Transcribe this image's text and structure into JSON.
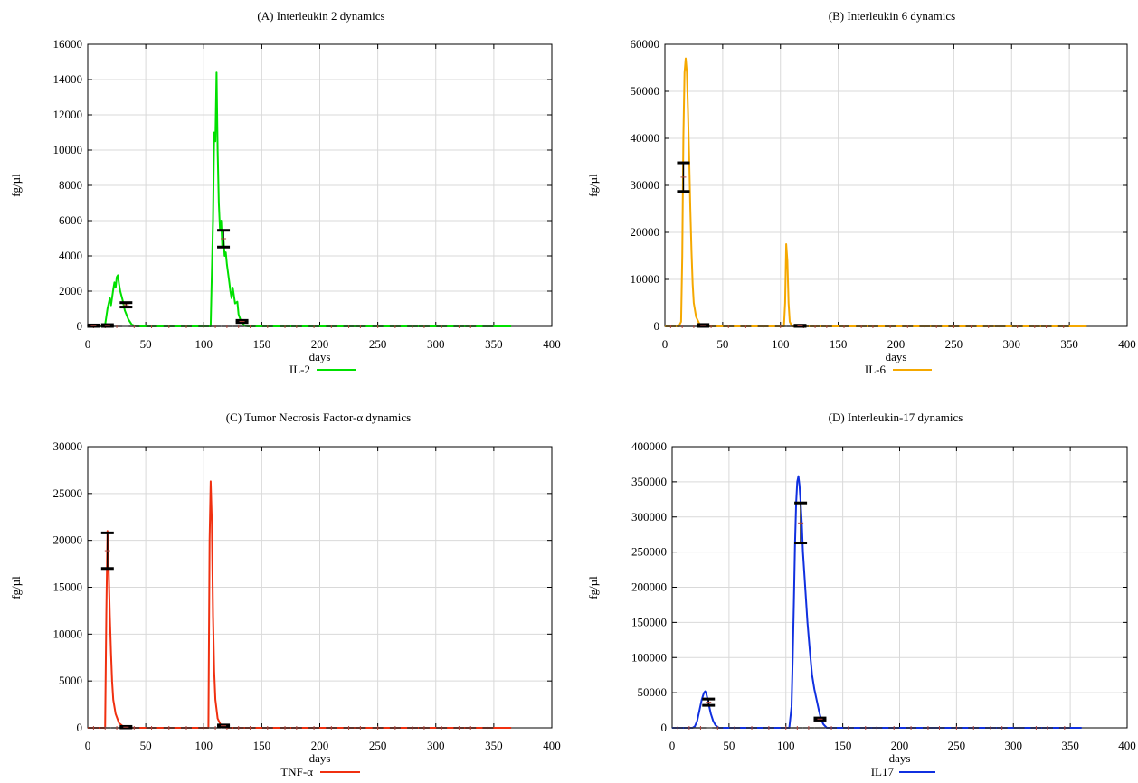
{
  "chart_data": [
    {
      "type": "line",
      "title": "(A) Interleukin 2 dynamics",
      "xlabel": "days",
      "ylabel": "fg/µl",
      "xlim": [
        0,
        400
      ],
      "ylim": [
        0,
        16000
      ],
      "xticks": [
        0,
        50,
        100,
        150,
        200,
        250,
        300,
        350,
        400
      ],
      "yticks": [
        0,
        2000,
        4000,
        6000,
        8000,
        10000,
        12000,
        14000,
        16000
      ],
      "grid": true,
      "legend_position": "bottom-center",
      "series": [
        {
          "name": "IL-2",
          "color": "#00e000",
          "points": [
            [
              0,
              0
            ],
            [
              12,
              0
            ],
            [
              15,
              100
            ],
            [
              17,
              1000
            ],
            [
              19,
              1600
            ],
            [
              20,
              1200
            ],
            [
              22,
              2100
            ],
            [
              23,
              2500
            ],
            [
              24,
              2200
            ],
            [
              25,
              2800
            ],
            [
              26,
              2900
            ],
            [
              27,
              2400
            ],
            [
              28,
              2000
            ],
            [
              30,
              1500
            ],
            [
              32,
              900
            ],
            [
              35,
              400
            ],
            [
              38,
              100
            ],
            [
              42,
              0
            ],
            [
              106,
              0
            ],
            [
              108,
              6000
            ],
            [
              109,
              11000
            ],
            [
              110,
              10500
            ],
            [
              111,
              14400
            ],
            [
              112,
              10000
            ],
            [
              113,
              7000
            ],
            [
              114,
              5500
            ],
            [
              115,
              6000
            ],
            [
              116,
              4500
            ],
            [
              117,
              5000
            ],
            [
              118,
              4000
            ],
            [
              119,
              4200
            ],
            [
              120,
              3500
            ],
            [
              122,
              2500
            ],
            [
              123,
              2000
            ],
            [
              124,
              1600
            ],
            [
              125,
              2200
            ],
            [
              127,
              1300
            ],
            [
              129,
              1400
            ],
            [
              130,
              700
            ],
            [
              132,
              300
            ],
            [
              135,
              50
            ],
            [
              138,
              0
            ],
            [
              365,
              0
            ]
          ]
        }
      ],
      "error_bars": [
        {
          "x": 5,
          "low": 0,
          "high": 80
        },
        {
          "x": 17,
          "low": 0,
          "high": 100
        },
        {
          "x": 33,
          "low": 1100,
          "high": 1350
        },
        {
          "x": 117,
          "low": 4500,
          "high": 5450
        },
        {
          "x": 133,
          "low": 220,
          "high": 340
        }
      ],
      "marker_x": [
        5,
        15,
        25,
        40,
        55,
        70,
        85,
        100,
        110,
        120,
        130,
        140,
        155,
        170,
        180,
        195,
        210,
        225,
        235,
        250,
        265,
        280,
        290,
        305,
        320,
        330,
        345
      ]
    },
    {
      "type": "line",
      "title": "(B) Interleukin 6 dynamics",
      "xlabel": "days",
      "ylabel": "fg/µl",
      "xlim": [
        0,
        400
      ],
      "ylim": [
        0,
        60000
      ],
      "xticks": [
        0,
        50,
        100,
        150,
        200,
        250,
        300,
        350,
        400
      ],
      "yticks": [
        0,
        10000,
        20000,
        30000,
        40000,
        50000,
        60000
      ],
      "grid": true,
      "legend_position": "bottom-center",
      "series": [
        {
          "name": "IL-6",
          "color": "#f5a800",
          "points": [
            [
              0,
              0
            ],
            [
              12,
              0
            ],
            [
              14,
              1000
            ],
            [
              15,
              15000
            ],
            [
              16,
              40000
            ],
            [
              17,
              54000
            ],
            [
              18,
              57000
            ],
            [
              19,
              54000
            ],
            [
              20,
              46000
            ],
            [
              21,
              36000
            ],
            [
              22,
              25000
            ],
            [
              23,
              16000
            ],
            [
              24,
              9000
            ],
            [
              25,
              5000
            ],
            [
              27,
              2000
            ],
            [
              30,
              500
            ],
            [
              35,
              0
            ],
            [
              103,
              0
            ],
            [
              104,
              5000
            ],
            [
              105,
              17500
            ],
            [
              106,
              14000
            ],
            [
              107,
              5000
            ],
            [
              108,
              1000
            ],
            [
              110,
              0
            ],
            [
              365,
              0
            ]
          ]
        }
      ],
      "error_bars": [
        {
          "x": 16,
          "low": 28700,
          "high": 34800
        },
        {
          "x": 33,
          "low": 0,
          "high": 400
        },
        {
          "x": 117,
          "low": 0,
          "high": 250
        }
      ],
      "marker_x": [
        5,
        15,
        25,
        40,
        55,
        70,
        85,
        100,
        110,
        120,
        130,
        140,
        155,
        170,
        180,
        195,
        210,
        225,
        235,
        250,
        265,
        280,
        290,
        305,
        320,
        330,
        345
      ]
    },
    {
      "type": "line",
      "title": "(C) Tumor Necrosis Factor-α dynamics",
      "xlabel": "days",
      "ylabel": "fg/µl",
      "xlim": [
        0,
        400
      ],
      "ylim": [
        0,
        30000
      ],
      "xticks": [
        0,
        50,
        100,
        150,
        200,
        250,
        300,
        350,
        400
      ],
      "yticks": [
        0,
        5000,
        10000,
        15000,
        20000,
        25000,
        30000
      ],
      "grid": true,
      "legend_position": "bottom-center",
      "series": [
        {
          "name": "TNF-α",
          "color": "#f03010",
          "points": [
            [
              0,
              0
            ],
            [
              15,
              0
            ],
            [
              16,
              12000
            ],
            [
              17,
              21000
            ],
            [
              18,
              17000
            ],
            [
              19,
              12000
            ],
            [
              20,
              8000
            ],
            [
              21,
              5000
            ],
            [
              22,
              3000
            ],
            [
              24,
              1500
            ],
            [
              27,
              500
            ],
            [
              32,
              0
            ],
            [
              104,
              0
            ],
            [
              105,
              20000
            ],
            [
              106,
              26300
            ],
            [
              107,
              22000
            ],
            [
              108,
              12000
            ],
            [
              109,
              6000
            ],
            [
              110,
              3000
            ],
            [
              112,
              1000
            ],
            [
              115,
              200
            ],
            [
              120,
              0
            ],
            [
              365,
              0
            ]
          ]
        }
      ],
      "error_bars": [
        {
          "x": 17,
          "low": 17000,
          "high": 20800
        },
        {
          "x": 33,
          "low": 0,
          "high": 150
        },
        {
          "x": 117,
          "low": 150,
          "high": 300
        }
      ],
      "marker_x": [
        5,
        15,
        25,
        40,
        55,
        70,
        85,
        100,
        110,
        120,
        130,
        140,
        155,
        170,
        180,
        195,
        210,
        225,
        235,
        250,
        265,
        280,
        290,
        305,
        320,
        330,
        345
      ]
    },
    {
      "type": "line",
      "title": "(D) Interleukin-17 dynamics",
      "xlabel": "days",
      "ylabel": "fg/µl",
      "xlim": [
        0,
        400
      ],
      "ylim": [
        0,
        400000
      ],
      "xticks": [
        0,
        50,
        100,
        150,
        200,
        250,
        300,
        350,
        400
      ],
      "yticks": [
        0,
        50000,
        100000,
        150000,
        200000,
        250000,
        300000,
        350000,
        400000
      ],
      "grid": true,
      "legend_position": "bottom-center",
      "series": [
        {
          "name": "IL17",
          "color": "#1030e0",
          "points": [
            [
              0,
              0
            ],
            [
              18,
              0
            ],
            [
              20,
              2000
            ],
            [
              22,
              10000
            ],
            [
              24,
              25000
            ],
            [
              26,
              40000
            ],
            [
              28,
              50000
            ],
            [
              29,
              52000
            ],
            [
              30,
              49000
            ],
            [
              32,
              35000
            ],
            [
              34,
              20000
            ],
            [
              36,
              10000
            ],
            [
              38,
              4000
            ],
            [
              41,
              0
            ],
            [
              103,
              0
            ],
            [
              105,
              30000
            ],
            [
              106,
              100000
            ],
            [
              107,
              180000
            ],
            [
              108,
              260000
            ],
            [
              109,
              320000
            ],
            [
              110,
              350000
            ],
            [
              111,
              358000
            ],
            [
              112,
              345000
            ],
            [
              113,
              320000
            ],
            [
              114,
              290000
            ],
            [
              115,
              250000
            ],
            [
              117,
              200000
            ],
            [
              119,
              150000
            ],
            [
              121,
              110000
            ],
            [
              123,
              75000
            ],
            [
              125,
              55000
            ],
            [
              127,
              40000
            ],
            [
              129,
              25000
            ],
            [
              131,
              12000
            ],
            [
              133,
              5000
            ],
            [
              136,
              0
            ],
            [
              360,
              0
            ]
          ]
        }
      ],
      "error_bars": [
        {
          "x": 32,
          "low": 32000,
          "high": 41000
        },
        {
          "x": 113,
          "low": 263000,
          "high": 320000
        },
        {
          "x": 130,
          "low": 11000,
          "high": 14000
        }
      ],
      "marker_x": [
        5,
        15,
        25,
        40,
        55,
        70,
        85,
        100,
        110,
        120,
        130,
        140,
        155,
        170,
        180,
        195,
        210,
        225,
        235,
        250,
        265,
        280,
        290,
        305,
        320,
        330,
        345
      ]
    }
  ]
}
